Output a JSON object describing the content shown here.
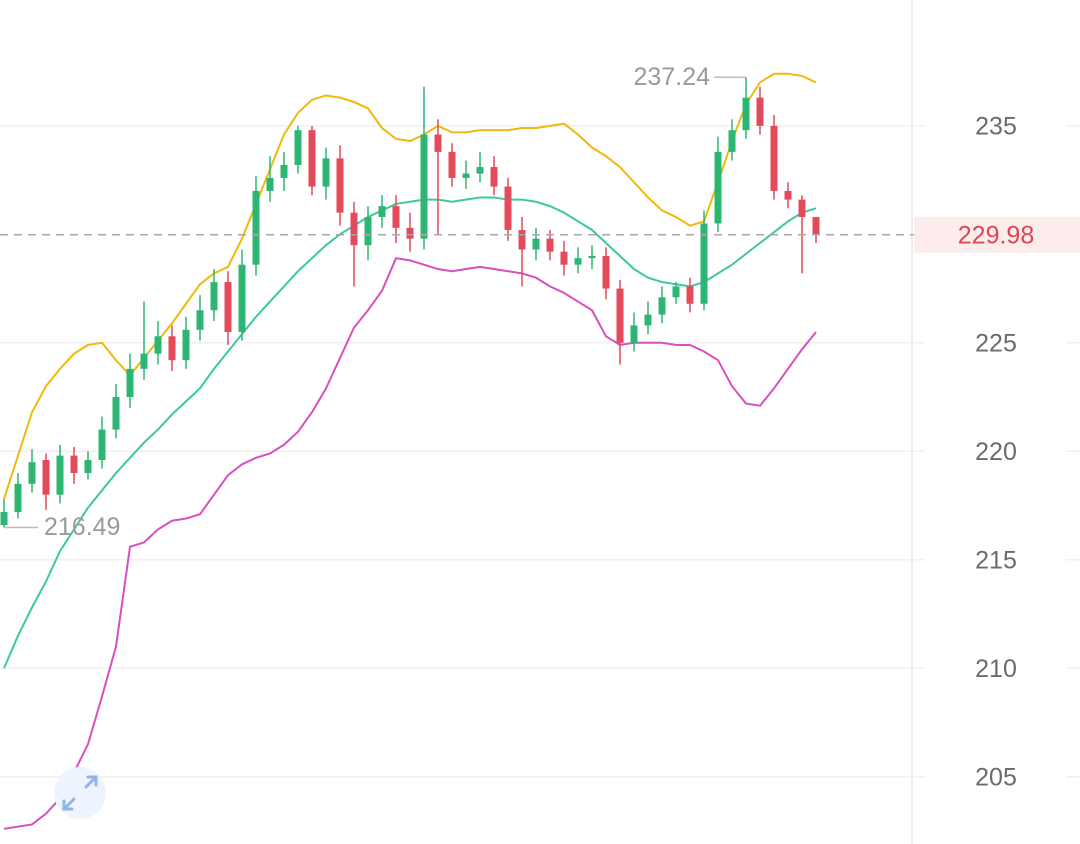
{
  "chart_data": {
    "type": "candlestick",
    "open": [
      216.6,
      217.2,
      218.5,
      219.6,
      218.0,
      219.8,
      219.0,
      219.6,
      221.0,
      222.5,
      223.8,
      224.5,
      225.3,
      224.2,
      225.6,
      226.5,
      227.8,
      225.5,
      228.6,
      232.0,
      232.6,
      233.2,
      234.8,
      232.2,
      233.5,
      231.0,
      229.5,
      230.8,
      231.3,
      230.3,
      229.8,
      234.6,
      233.8,
      232.6,
      232.8,
      233.1,
      232.2,
      230.2,
      229.3,
      229.8,
      229.2,
      228.6,
      228.9,
      229.0,
      227.5,
      225.0,
      225.8,
      226.3,
      227.1,
      227.6,
      226.8,
      230.5,
      233.8,
      234.8,
      236.3,
      235.0,
      232.0,
      231.6,
      230.8
    ],
    "high": [
      217.8,
      219.0,
      220.1,
      219.9,
      220.3,
      220.2,
      220.0,
      221.6,
      223.1,
      224.5,
      226.9,
      226.0,
      225.8,
      226.2,
      227.2,
      228.4,
      228.3,
      229.3,
      232.7,
      233.6,
      233.8,
      235.0,
      235.0,
      234.0,
      234.1,
      231.5,
      231.3,
      231.8,
      231.8,
      231.0,
      236.8,
      235.3,
      234.2,
      233.4,
      233.8,
      233.6,
      232.6,
      230.8,
      230.3,
      230.2,
      229.7,
      229.4,
      229.5,
      229.4,
      227.9,
      226.4,
      226.9,
      227.6,
      227.8,
      228.0,
      231.1,
      234.5,
      235.3,
      237.24,
      236.8,
      235.5,
      232.4,
      231.8,
      230.5
    ],
    "low": [
      216.49,
      216.9,
      218.1,
      217.3,
      217.6,
      218.5,
      218.7,
      219.2,
      220.6,
      222.0,
      223.3,
      224.0,
      223.7,
      223.8,
      225.1,
      226.0,
      224.9,
      225.1,
      228.1,
      231.5,
      232.0,
      232.8,
      231.8,
      231.6,
      230.4,
      227.6,
      228.8,
      230.3,
      229.6,
      229.2,
      229.3,
      230.0,
      232.2,
      232.1,
      232.4,
      231.8,
      229.7,
      227.6,
      228.8,
      228.8,
      228.1,
      228.2,
      228.4,
      227.0,
      224.0,
      224.6,
      225.4,
      225.9,
      226.8,
      226.4,
      226.5,
      230.1,
      233.4,
      234.4,
      234.6,
      231.6,
      231.2,
      228.2,
      229.6
    ],
    "close": [
      217.2,
      218.5,
      219.5,
      218.0,
      219.8,
      219.0,
      219.6,
      221.0,
      222.5,
      223.8,
      224.5,
      225.3,
      224.2,
      225.6,
      226.5,
      227.8,
      225.5,
      228.6,
      232.0,
      232.6,
      233.2,
      234.8,
      232.2,
      233.5,
      231.0,
      229.5,
      230.8,
      231.3,
      230.3,
      229.8,
      234.6,
      233.8,
      232.6,
      232.8,
      233.1,
      232.2,
      230.2,
      229.3,
      229.8,
      229.2,
      228.6,
      228.9,
      229.0,
      227.5,
      225.0,
      225.8,
      226.3,
      227.1,
      227.6,
      226.8,
      230.5,
      233.8,
      234.8,
      236.3,
      235.0,
      232.0,
      231.6,
      230.8,
      229.98
    ],
    "up_color": "#2db573",
    "down_color": "#e34a5a",
    "bands": [
      {
        "color": "#f0b90b",
        "values": [
          217.8,
          219.8,
          221.8,
          223.0,
          223.8,
          224.5,
          224.9,
          225.0,
          224.2,
          223.5,
          224.3,
          225.1,
          225.9,
          226.8,
          227.7,
          228.2,
          228.5,
          229.8,
          231.4,
          233.0,
          234.6,
          235.6,
          236.2,
          236.4,
          236.3,
          236.1,
          235.8,
          234.9,
          234.4,
          234.3,
          234.6,
          235.0,
          234.7,
          234.7,
          234.8,
          234.8,
          234.8,
          234.9,
          234.9,
          235.0,
          235.1,
          234.6,
          234.0,
          233.6,
          233.1,
          232.4,
          231.7,
          231.1,
          230.8,
          230.4,
          230.6,
          232.4,
          234.3,
          236.0,
          237.0,
          237.4,
          237.4,
          237.3,
          237.0
        ]
      },
      {
        "color": "#3cc8a0",
        "values": [
          210.0,
          211.5,
          212.8,
          214.0,
          215.4,
          216.4,
          217.4,
          218.2,
          219.0,
          219.7,
          220.4,
          221.0,
          221.7,
          222.3,
          222.9,
          223.8,
          224.6,
          225.4,
          226.2,
          226.9,
          227.6,
          228.3,
          228.9,
          229.5,
          230.0,
          230.4,
          230.8,
          231.1,
          231.4,
          231.5,
          231.6,
          231.6,
          231.5,
          231.6,
          231.7,
          231.7,
          231.6,
          231.6,
          231.5,
          231.3,
          231.0,
          230.6,
          230.2,
          229.6,
          229.0,
          228.4,
          228.0,
          227.8,
          227.7,
          227.6,
          227.8,
          228.2,
          228.6,
          229.1,
          229.6,
          230.1,
          230.6,
          231.0,
          231.2
        ]
      },
      {
        "color": "#d84fbf",
        "values": [
          202.6,
          202.7,
          202.8,
          203.3,
          204.0,
          205.2,
          206.5,
          208.7,
          211.0,
          215.6,
          215.8,
          216.4,
          216.8,
          216.9,
          217.1,
          218.0,
          218.9,
          219.4,
          219.7,
          219.9,
          220.3,
          220.9,
          221.8,
          222.9,
          224.3,
          225.7,
          226.5,
          227.4,
          228.9,
          228.8,
          228.6,
          228.4,
          228.3,
          228.4,
          228.5,
          228.4,
          228.3,
          228.2,
          228.0,
          227.6,
          227.3,
          226.9,
          226.5,
          225.3,
          224.9,
          225.0,
          225.0,
          225.0,
          224.9,
          224.9,
          224.6,
          224.2,
          223.0,
          222.2,
          222.1,
          222.9,
          223.8,
          224.7,
          225.5
        ]
      }
    ],
    "ylim": [
      201.9,
      240.8
    ],
    "yticks": [
      205,
      210,
      215,
      220,
      225,
      235
    ],
    "grid": true
  }
}
